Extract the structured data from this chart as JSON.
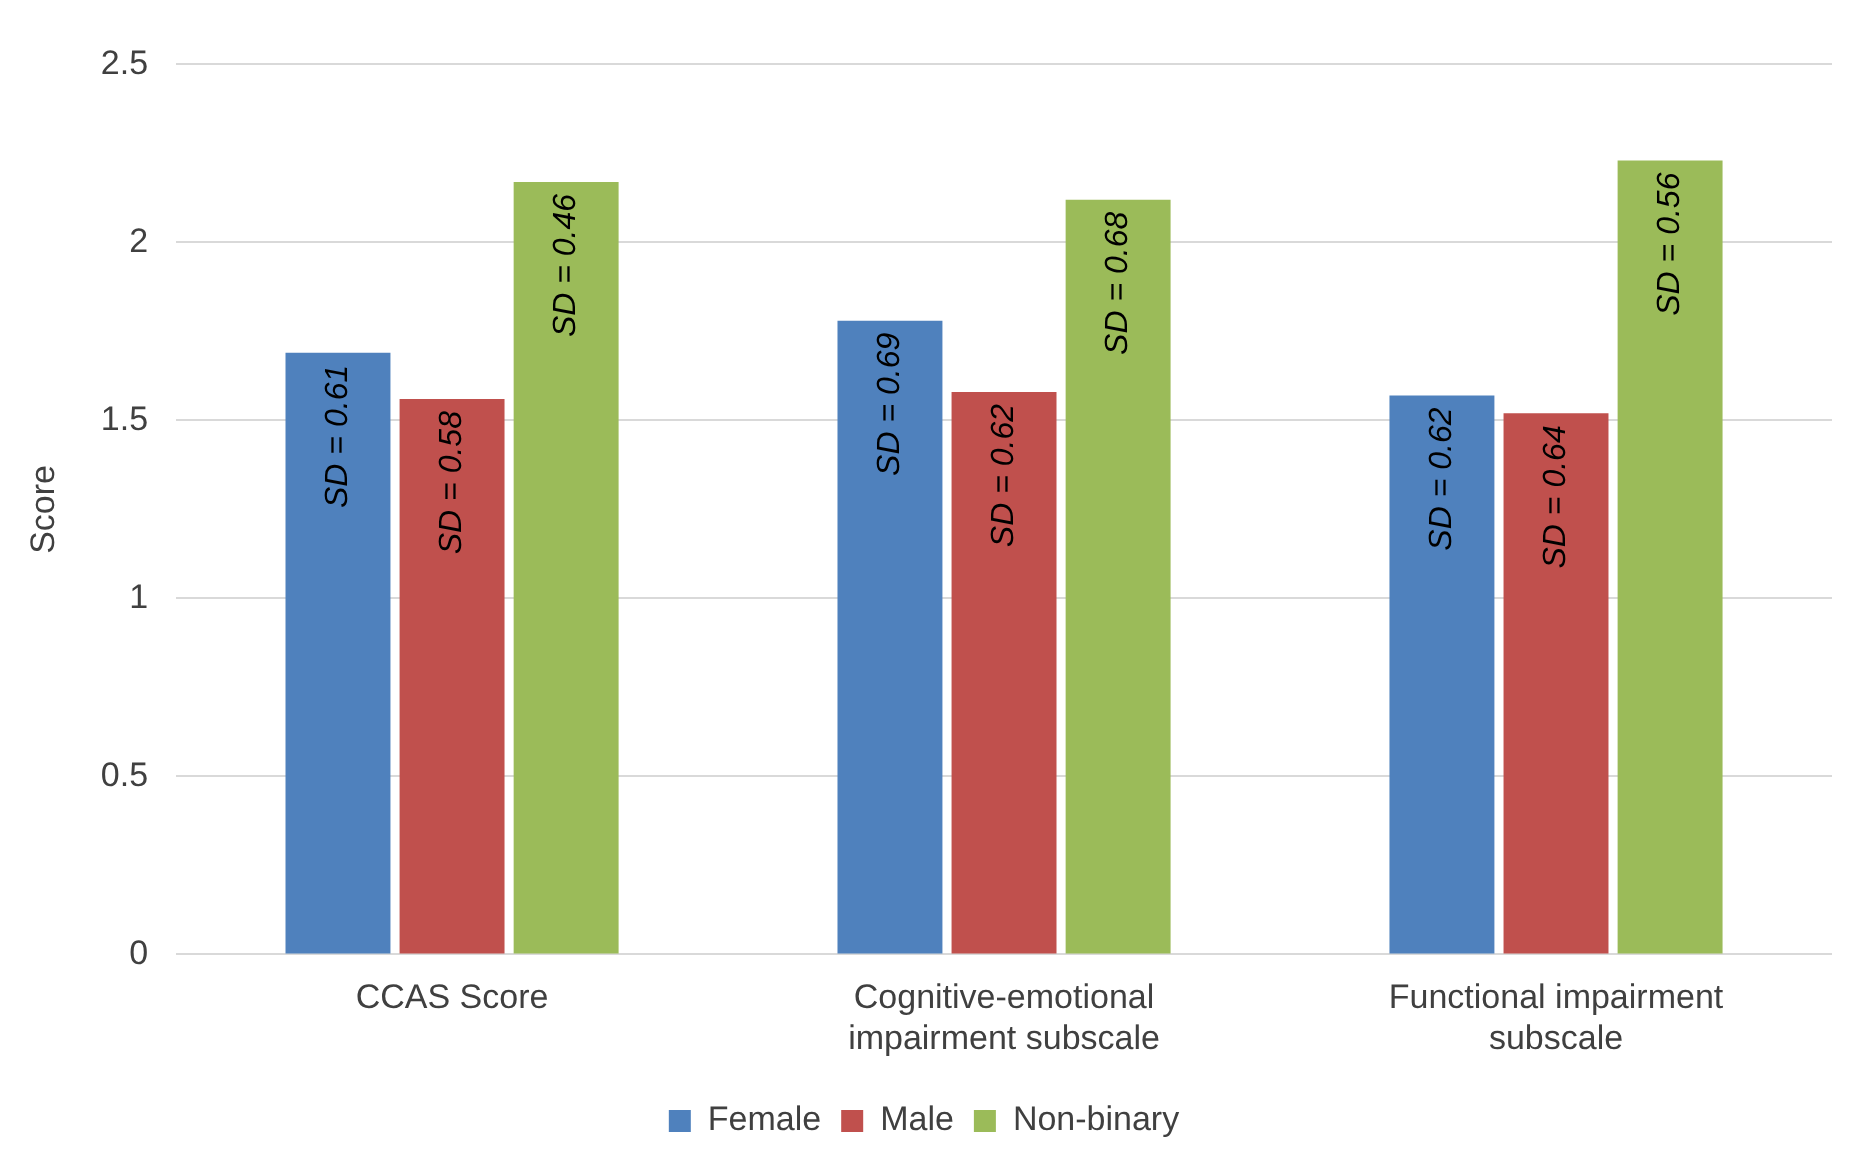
{
  "chart_data": {
    "type": "bar",
    "ylabel": "Score",
    "categories": [
      "CCAS Score",
      "Cognitive-emotional impairment subscale",
      "Functional impairment subscale"
    ],
    "series": [
      {
        "name": "Female",
        "color": "#4f81bd",
        "values": [
          1.69,
          1.78,
          1.57
        ]
      },
      {
        "name": "Male",
        "color": "#c0504d",
        "values": [
          1.56,
          1.58,
          1.52
        ]
      },
      {
        "name": "Non-binary",
        "color": "#9bbb59",
        "values": [
          2.17,
          2.12,
          2.23
        ]
      }
    ],
    "annotations": [
      "SD = 0.61",
      "SD = 0.58",
      "SD = 0.46",
      "SD = 0.69",
      "SD = 0.62",
      "SD = 0.68",
      "SD = 0.62",
      "SD = 0.64",
      "SD = 0.56"
    ],
    "ylim": [
      0,
      2.5
    ],
    "yticks": [
      0,
      0.5,
      1,
      1.5,
      2,
      2.5
    ],
    "grid": "y",
    "legend": "bottom"
  }
}
